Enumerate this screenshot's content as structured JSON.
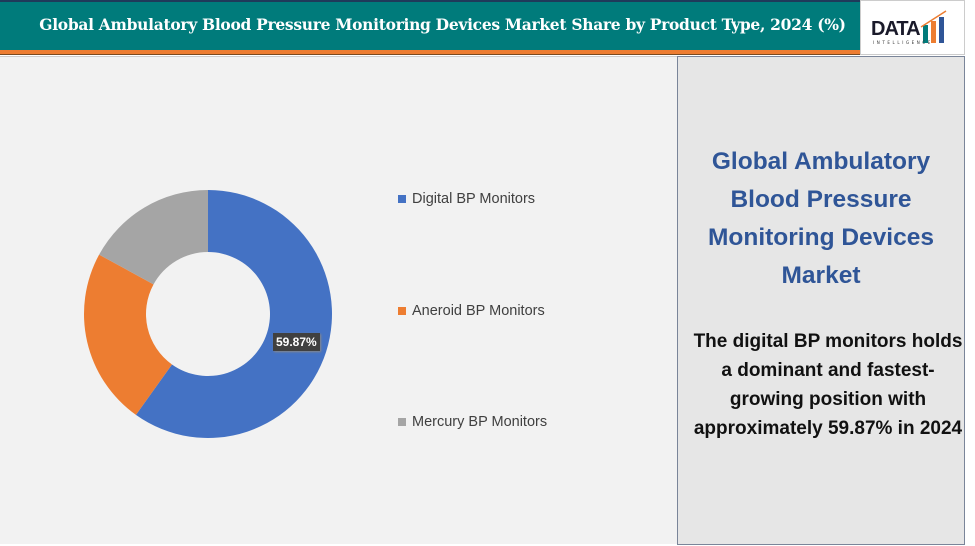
{
  "header": {
    "title": "Global Ambulatory Blood Pressure Monitoring Devices Market Share by Product Type, 2024 (%)"
  },
  "logo": {
    "text": "DATA",
    "sub": "INTELLIGENCE"
  },
  "chart_data": {
    "type": "pie",
    "donut": true,
    "categories": [
      "Digital BP Monitors",
      "Aneroid BP Monitors",
      "Mercury BP Monitors"
    ],
    "values": [
      59.87,
      23.07,
      17.06
    ],
    "colors": [
      "#4472c4",
      "#ed7d31",
      "#a5a5a5"
    ],
    "data_labels": [
      "59.87%"
    ],
    "legend_placement": "right"
  },
  "side": {
    "title": "Global Ambulatory Blood Pressure Monitoring Devices Market",
    "description": "The digital BP monitors holds a dominant and fastest-growing position with approximately 59.87% in 2024"
  }
}
